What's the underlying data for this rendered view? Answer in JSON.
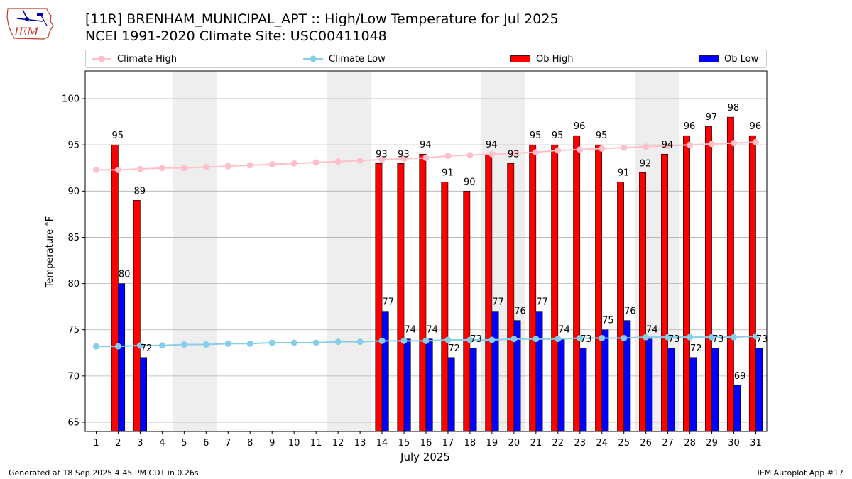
{
  "header": {
    "title_line1": "[11R] BRENHAM_MUNICIPAL_APT :: High/Low Temperature for Jul 2025",
    "title_line2": "NCEI 1991-2020 Climate Site: USC00411048",
    "logo_text": "IEM"
  },
  "footer": {
    "generated": "Generated at 18 Sep 2025 4:45 PM CDT in 0.26s",
    "app": "IEM Autoplot App #17"
  },
  "legend": {
    "climate_high": "Climate High",
    "climate_low": "Climate Low",
    "ob_high": "Ob High",
    "ob_low": "Ob Low"
  },
  "colors": {
    "ob_high": "#ff0000",
    "ob_low": "#0000ff",
    "climate_high": "#ffc0cb",
    "climate_low": "#87ceeb",
    "weekend_band": "#eeeeee",
    "grid": "#b0b0b0"
  },
  "chart_data": {
    "type": "bar",
    "xlabel": "July 2025",
    "ylabel": "Temperature °F",
    "ylim": [
      64,
      103
    ],
    "yticks": [
      65,
      70,
      75,
      80,
      85,
      90,
      95,
      100
    ],
    "grid": "horizontal",
    "legend_position": "top",
    "days": [
      1,
      2,
      3,
      4,
      5,
      6,
      7,
      8,
      9,
      10,
      11,
      12,
      13,
      14,
      15,
      16,
      17,
      18,
      19,
      20,
      21,
      22,
      23,
      24,
      25,
      26,
      27,
      28,
      29,
      30,
      31
    ],
    "weekend_bands": [
      [
        5,
        6
      ],
      [
        12,
        13
      ],
      [
        19,
        20
      ],
      [
        26,
        27
      ]
    ],
    "series": [
      {
        "name": "Ob High",
        "kind": "bar",
        "values": [
          null,
          95,
          89,
          null,
          null,
          null,
          null,
          null,
          null,
          null,
          null,
          null,
          null,
          93,
          93,
          94,
          91,
          90,
          94,
          93,
          95,
          95,
          96,
          95,
          91,
          92,
          94,
          96,
          97,
          98,
          96
        ]
      },
      {
        "name": "Ob Low",
        "kind": "bar",
        "values": [
          null,
          80,
          72,
          null,
          null,
          null,
          null,
          null,
          null,
          null,
          null,
          null,
          null,
          77,
          74,
          74,
          72,
          73,
          77,
          76,
          77,
          74,
          73,
          75,
          76,
          74,
          73,
          72,
          73,
          69,
          73
        ]
      },
      {
        "name": "Climate High",
        "kind": "line",
        "values": [
          92.3,
          92.3,
          92.4,
          92.5,
          92.5,
          92.6,
          92.7,
          92.8,
          92.9,
          93.0,
          93.1,
          93.2,
          93.3,
          93.4,
          93.5,
          93.6,
          93.8,
          93.9,
          94.0,
          94.1,
          94.2,
          94.4,
          94.5,
          94.6,
          94.7,
          94.8,
          94.9,
          95.0,
          95.1,
          95.2,
          95.3
        ]
      },
      {
        "name": "Climate Low",
        "kind": "line",
        "values": [
          73.2,
          73.2,
          73.3,
          73.3,
          73.4,
          73.4,
          73.5,
          73.5,
          73.6,
          73.6,
          73.6,
          73.7,
          73.7,
          73.8,
          73.8,
          73.8,
          73.9,
          73.9,
          73.9,
          74.0,
          74.0,
          74.0,
          74.1,
          74.1,
          74.1,
          74.2,
          74.2,
          74.2,
          74.2,
          74.2,
          74.3
        ]
      }
    ]
  }
}
